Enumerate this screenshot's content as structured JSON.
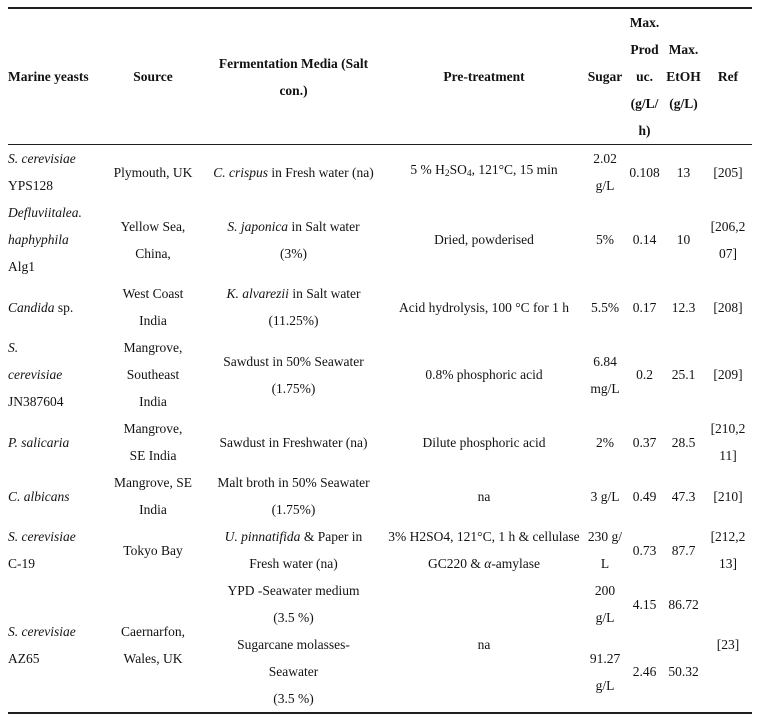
{
  "colors": {
    "background": "#ffffff",
    "text": "#121212",
    "rule": "#1f1f1f"
  },
  "table": {
    "header": {
      "yeast": "Marine yeasts",
      "source": "Source",
      "media": [
        "Fermentation Media (Salt",
        "con.)"
      ],
      "pretreat": "Pre-treatment",
      "sugar": "Sugar",
      "produc": [
        "Max.",
        "Prod",
        "uc.",
        "(g/L/",
        "h)"
      ],
      "etoh": [
        "Max.",
        "EtOH",
        "(g/L)"
      ],
      "ref": "Ref"
    },
    "rows": [
      {
        "yeast": [
          [
            {
              "t": "S. cerevisiae",
              "i": true
            }
          ],
          [
            "YPS128"
          ]
        ],
        "source": [
          [
            "Plymouth, UK"
          ]
        ],
        "media": [
          {
            "grow": 1,
            "lines": [
              [
                {
                  "t": "C. crispus",
                  "i": true
                },
                " in Fresh water (na)"
              ]
            ]
          }
        ],
        "pretreat": [
          [
            "5 % H",
            {
              "t": "2",
              "sub": true
            },
            "SO",
            {
              "t": "4",
              "sub": true
            },
            ", 121°C, 15 min"
          ]
        ],
        "sugar": [
          {
            "grow": 1,
            "lines": [
              [
                "2.02"
              ],
              [
                "g/L"
              ]
            ]
          }
        ],
        "produc": [
          {
            "grow": 1,
            "lines": [
              [
                "0.108"
              ]
            ]
          }
        ],
        "etoh": [
          {
            "grow": 1,
            "lines": [
              [
                "13"
              ]
            ]
          }
        ],
        "ref": [
          [
            "[205]"
          ]
        ]
      },
      {
        "yeast": [
          [
            {
              "t": "Defluviitalea.",
              "i": true
            }
          ],
          [
            {
              "t": "haphyphila",
              "i": true
            }
          ],
          [
            "Alg1"
          ]
        ],
        "source": [
          [
            "Yellow Sea,"
          ],
          [
            "China,"
          ]
        ],
        "media": [
          {
            "grow": 1,
            "lines": [
              [
                {
                  "t": "S. japonica",
                  "i": true
                },
                " in Salt water"
              ],
              [
                "(3%)"
              ]
            ]
          }
        ],
        "pretreat": [
          [
            "Dried, powderised"
          ]
        ],
        "sugar": [
          {
            "grow": 1,
            "lines": [
              [
                "5%"
              ]
            ]
          }
        ],
        "produc": [
          {
            "grow": 1,
            "lines": [
              [
                "0.14"
              ]
            ]
          }
        ],
        "etoh": [
          {
            "grow": 1,
            "lines": [
              [
                "10"
              ]
            ]
          }
        ],
        "ref": [
          [
            "[206,2"
          ],
          [
            "07]"
          ]
        ]
      },
      {
        "yeast": [
          [
            {
              "t": "Candida",
              "i": true
            },
            " sp."
          ]
        ],
        "source": [
          [
            "West Coast"
          ],
          [
            "India"
          ]
        ],
        "media": [
          {
            "grow": 1,
            "lines": [
              [
                {
                  "t": "K. alvarezii",
                  "i": true
                },
                " in Salt water"
              ],
              [
                "(11.25%)"
              ]
            ]
          }
        ],
        "pretreat": [
          [
            "Acid hydrolysis, 100 °C for 1 h"
          ]
        ],
        "sugar": [
          {
            "grow": 1,
            "lines": [
              [
                "5.5%"
              ]
            ]
          }
        ],
        "produc": [
          {
            "grow": 1,
            "lines": [
              [
                "0.17"
              ]
            ]
          }
        ],
        "etoh": [
          {
            "grow": 1,
            "lines": [
              [
                "12.3"
              ]
            ]
          }
        ],
        "ref": [
          [
            "[208]"
          ]
        ]
      },
      {
        "yeast": [
          [
            {
              "t": "S.",
              "i": true
            }
          ],
          [
            {
              "t": "cerevisiae",
              "i": true
            }
          ],
          [
            "JN387604"
          ]
        ],
        "source": [
          [
            "Mangrove,"
          ],
          [
            "Southeast"
          ],
          [
            "India"
          ]
        ],
        "media": [
          {
            "grow": 1,
            "lines": [
              [
                "Sawdust in 50% Seawater"
              ],
              [
                "(1.75%)"
              ]
            ]
          }
        ],
        "pretreat": [
          [
            "0.8% phosphoric acid"
          ]
        ],
        "sugar": [
          {
            "grow": 1,
            "lines": [
              [
                "6.84"
              ],
              [
                "mg/L"
              ]
            ]
          }
        ],
        "produc": [
          {
            "grow": 1,
            "lines": [
              [
                "0.2"
              ]
            ]
          }
        ],
        "etoh": [
          {
            "grow": 1,
            "lines": [
              [
                "25.1"
              ]
            ]
          }
        ],
        "ref": [
          [
            "[209]"
          ]
        ]
      },
      {
        "yeast": [
          [
            {
              "t": "P. salicaria",
              "i": true
            }
          ]
        ],
        "source": [
          [
            "Mangrove,"
          ],
          [
            "SE India"
          ]
        ],
        "media": [
          {
            "grow": 1,
            "lines": [
              [
                "Sawdust in Freshwater (na)"
              ]
            ]
          }
        ],
        "pretreat": [
          [
            "Dilute phosphoric acid"
          ]
        ],
        "sugar": [
          {
            "grow": 1,
            "lines": [
              [
                "2%"
              ]
            ]
          }
        ],
        "produc": [
          {
            "grow": 1,
            "lines": [
              [
                "0.37"
              ]
            ]
          }
        ],
        "etoh": [
          {
            "grow": 1,
            "lines": [
              [
                "28.5"
              ]
            ]
          }
        ],
        "ref": [
          [
            "[210,2"
          ],
          [
            "11]"
          ]
        ]
      },
      {
        "yeast": [
          [
            {
              "t": "C. albicans",
              "i": true
            }
          ]
        ],
        "source": [
          [
            "Mangrove, SE"
          ],
          [
            "India"
          ]
        ],
        "media": [
          {
            "grow": 1,
            "lines": [
              [
                "Malt broth in 50% Seawater"
              ],
              [
                "(1.75%)"
              ]
            ]
          }
        ],
        "pretreat": [
          [
            "na"
          ]
        ],
        "sugar": [
          {
            "grow": 1,
            "lines": [
              [
                "3 g/L"
              ]
            ]
          }
        ],
        "produc": [
          {
            "grow": 1,
            "lines": [
              [
                "0.49"
              ]
            ]
          }
        ],
        "etoh": [
          {
            "grow": 1,
            "lines": [
              [
                "47.3"
              ]
            ]
          }
        ],
        "ref": [
          [
            "[210]"
          ]
        ]
      },
      {
        "yeast": [
          [
            {
              "t": "S. cerevisiae",
              "i": true
            }
          ],
          [
            "C-19"
          ]
        ],
        "source": [
          [
            "Tokyo Bay"
          ]
        ],
        "media": [
          {
            "grow": 1,
            "lines": [
              [
                {
                  "t": "U. pinnatifida",
                  "i": true
                },
                " & Paper in"
              ],
              [
                "Fresh water (na)"
              ]
            ]
          }
        ],
        "pretreat": [
          [
            "3% H2SO4, 121°C, 1 h & cellulase"
          ],
          [
            "GC220 & ",
            {
              "t": "α",
              "i": true
            },
            "-amylase"
          ]
        ],
        "sugar": [
          {
            "grow": 1,
            "lines": [
              [
                "230 g/"
              ],
              [
                "L"
              ]
            ]
          }
        ],
        "produc": [
          {
            "grow": 1,
            "lines": [
              [
                "0.73"
              ]
            ]
          }
        ],
        "etoh": [
          {
            "grow": 1,
            "lines": [
              [
                "87.7"
              ]
            ]
          }
        ],
        "ref": [
          [
            "[212,2"
          ],
          [
            "13]"
          ]
        ]
      },
      {
        "yeast": [
          [
            {
              "t": "S. cerevisiae",
              "i": true
            }
          ],
          [
            "AZ65"
          ]
        ],
        "source": [
          [
            "Caernarfon,"
          ],
          [
            "Wales, UK"
          ]
        ],
        "media": [
          {
            "grow": 2,
            "lines": [
              [
                "YPD -Seawater medium"
              ],
              [
                "(3.5 %)"
              ]
            ]
          },
          {
            "grow": 3,
            "lines": [
              [
                "Sugarcane molasses-"
              ],
              [
                "Seawater"
              ],
              [
                "(3.5 %)"
              ]
            ]
          }
        ],
        "pretreat": [
          [
            "na"
          ]
        ],
        "sugar": [
          {
            "grow": 2,
            "lines": [
              [
                "200"
              ],
              [
                "g/L"
              ]
            ]
          },
          {
            "grow": 3,
            "lines": [
              [
                "91.27"
              ],
              [
                "g/L"
              ]
            ]
          }
        ],
        "produc": [
          {
            "grow": 2,
            "lines": [
              [
                "4.15"
              ]
            ]
          },
          {
            "grow": 3,
            "lines": [
              [
                "2.46"
              ]
            ]
          }
        ],
        "etoh": [
          {
            "grow": 2,
            "lines": [
              [
                "86.72"
              ]
            ]
          },
          {
            "grow": 3,
            "lines": [
              [
                "50.32"
              ]
            ]
          }
        ],
        "ref": [
          [
            "[23]"
          ]
        ]
      }
    ]
  }
}
